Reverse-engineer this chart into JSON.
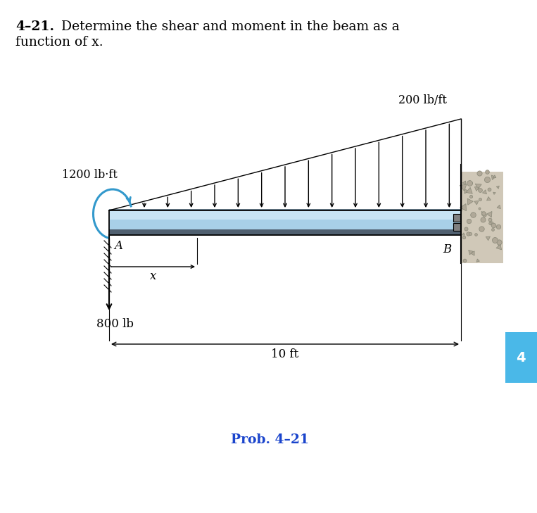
{
  "title_bold": "4–21.",
  "title_rest": "  Determine the shear and moment in the beam as a",
  "title_line2": "function of x.",
  "prob_label": "Prob. 4–21",
  "label_200": "200 lb/ft",
  "label_1200": "1200 lb·ft",
  "label_800": "800 lb",
  "label_A": "A",
  "label_B": "B",
  "label_x": "x",
  "label_10ft": "10 ft",
  "label_4": "4",
  "bg_color": "#ffffff",
  "beam_light": "#a8d0e8",
  "beam_highlight": "#c8e4f4",
  "beam_dark": "#5a7080",
  "tab_color": "#4ab8e8",
  "moment_arrow_color": "#3399cc",
  "wall_fill": "#d0c8b8"
}
